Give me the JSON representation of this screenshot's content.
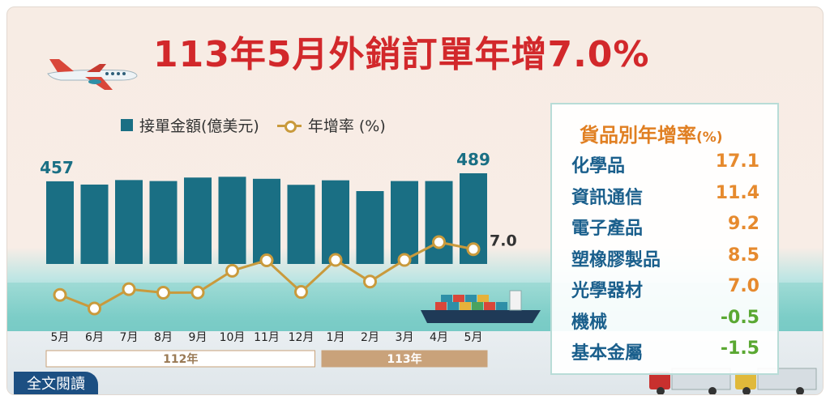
{
  "title": "113年5月外銷訂單年增7.0%",
  "legend": {
    "bar_label": "接單金額(億美元)",
    "line_label": "年增率 (%)"
  },
  "chart_data": {
    "type": "bar+line",
    "title": "113年5月外銷訂單年增7.0%",
    "categories": [
      "5月",
      "6月",
      "7月",
      "8月",
      "9月",
      "10月",
      "11月",
      "12月",
      "1月",
      "2月",
      "3月",
      "4月",
      "5月"
    ],
    "year_groups": [
      {
        "label": "112年",
        "start": 0,
        "end": 7
      },
      {
        "label": "113年",
        "start": 8,
        "end": 12
      }
    ],
    "series": [
      {
        "name": "接單金額(億美元)",
        "type": "bar",
        "values": [
          457,
          444,
          462,
          458,
          472,
          475,
          467,
          443,
          461,
          418,
          458,
          458,
          489
        ]
      },
      {
        "name": "年增率 (%)",
        "type": "line",
        "values": [
          -17.6,
          -24.9,
          -14.5,
          -16.4,
          -16.3,
          -4.6,
          1.0,
          -16.0,
          1.2,
          -10.4,
          1.2,
          10.8,
          7.0
        ]
      }
    ],
    "bar_labels": {
      "first": "457",
      "last": "489"
    },
    "line_label_last": "7.0",
    "bar_range": [
      0,
      500
    ],
    "line_range": [
      -60,
      30
    ]
  },
  "panel": {
    "title": "貨品別年增率",
    "unit": "(%)",
    "items": [
      {
        "name": "化學品",
        "value": "17.1",
        "color": "#e68a2e"
      },
      {
        "name": "資訊通信",
        "value": "11.4",
        "color": "#e68a2e"
      },
      {
        "name": "電子產品",
        "value": "9.2",
        "color": "#e68a2e"
      },
      {
        "name": "塑橡膠製品",
        "value": "8.5",
        "color": "#e68a2e"
      },
      {
        "name": "光學器材",
        "value": "7.0",
        "color": "#e68a2e"
      },
      {
        "name": "機械",
        "value": "-0.5",
        "color": "#5aa832"
      },
      {
        "name": "基本金屬",
        "value": "-1.5",
        "color": "#5aa832"
      }
    ]
  },
  "fulltext_button": "全文閱讀",
  "colors": {
    "bar": "#1a6f84",
    "line": "#c99a3c",
    "title": "#d2282b",
    "year_112": "#ffffff",
    "year_113": "#c9a27a"
  }
}
